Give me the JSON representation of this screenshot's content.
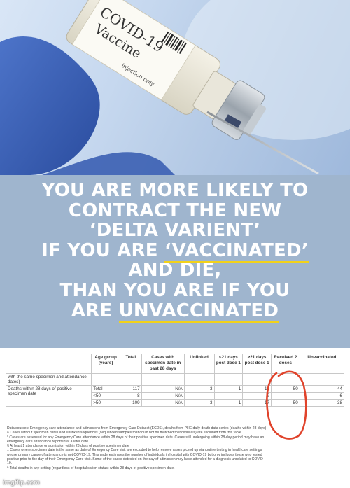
{
  "photo": {
    "vial_label_title": "COVID-19",
    "vial_label_subtitle": "Vaccine",
    "vial_label_note": "injection only"
  },
  "headline": {
    "lines": [
      "YOU ARE MORE LIKELY TO",
      "CONTRACT THE NEW",
      "‘DELTA VARIENT’"
    ],
    "line4_prefix": "IF YOU ARE ",
    "line4_underlined": "‘VACCINATED’",
    "line5": "AND DIE,",
    "line6": "THAN YOU ARE IF YOU",
    "line7_prefix": "ARE ",
    "line7_underlined": "UNVACCINATED",
    "text_color": "#ffffff",
    "background_color": "#9fb5ce",
    "underline_color": "#f2d21a"
  },
  "table": {
    "headers": [
      "",
      "Age group (years)",
      "Total",
      "Cases with specimen date in past 28 days",
      "Unlinked",
      "<21 days post dose 1",
      "≥21 days post dose 1",
      "Received 2 doses",
      "Unvaccinated"
    ],
    "note_row": "with the same specimen and attendance dates)",
    "section_label": "Deaths within 28 days of positive specimen date",
    "rows": [
      {
        "age": "Total",
        "total": "117",
        "cases": "N/A",
        "unlinked": "3",
        "lt21": "1",
        "ge21": "19",
        "two_doses": "50",
        "unvaccinated": "44"
      },
      {
        "age": "<50",
        "total": "8",
        "cases": "N/A",
        "unlinked": "-",
        "lt21": "-",
        "ge21": "2",
        "two_doses": "-",
        "unvaccinated": "6"
      },
      {
        "age": ">50",
        "total": "109",
        "cases": "N/A",
        "unlinked": "3",
        "lt21": "1",
        "ge21": "17",
        "two_doses": "50",
        "unvaccinated": "38"
      }
    ],
    "highlight_color": "#e0432b",
    "notes": [
      "Data sources: Emergency care attendance and admissions from Emergency Care Dataset (ECDS), deaths from PHE daily death data series (deaths within 28 days)",
      "¥ Cases without specimen dates and unlinked sequences (sequenced samples that could not be matched to individuals) are excluded from this table.",
      "* Cases are assessed for any Emergency Care attendance within 28 days of their positive specimen date. Cases still undergoing within 28-day period may have an",
      "emergency care attendance reported at a later date.",
      "§ At least 1 attendance or admission within 28 days of positive specimen date",
      "‡ Cases where specimen date is the same as date of Emergency Care visit are excluded to help remove cases picked up via routine testing in healthcare settings",
      "whose primary cause of attendance is not COVID-19. This underestimates the number of individuals in hospital with COVID-19 but only includes those who tested",
      "positive prior to the day of their Emergency Care visit. Some of the cases detected on the day of admission may have attended for a diagnosis unrelated to COVID-",
      "19.",
      "^ Total deaths in any setting (regardless of hospitalisation status) within 28 days of positive specimen date."
    ]
  },
  "watermark": "imgflip.com"
}
